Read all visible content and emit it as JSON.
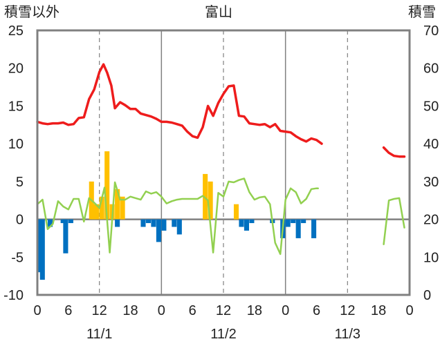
{
  "chart_data": {
    "type": "combo",
    "title": "富山",
    "left_axis_label": "積雪以外",
    "right_axis_label": "積雪",
    "left_axis": {
      "ylim": [
        -10,
        25
      ],
      "ticks": [
        25,
        20,
        15,
        10,
        5,
        0,
        -5,
        -10
      ]
    },
    "right_axis": {
      "ylim": [
        0,
        70
      ],
      "ticks": [
        70,
        60,
        50,
        40,
        30,
        20,
        10,
        0
      ]
    },
    "x_axis": {
      "range_hours": [
        0,
        72
      ],
      "tick_hours": [
        0,
        6,
        12,
        18,
        24,
        30,
        36,
        42,
        48,
        54,
        60,
        66,
        72
      ],
      "tick_labels": [
        "0",
        "6",
        "12",
        "18",
        "0",
        "6",
        "12",
        "18",
        "0",
        "6",
        "12",
        "18",
        "0"
      ],
      "day_labels": [
        {
          "label": "11/1",
          "hour": 12
        },
        {
          "label": "11/2",
          "hour": 36
        },
        {
          "label": "11/3",
          "hour": 60
        }
      ],
      "day_boundaries": [
        24,
        48
      ],
      "dashed_lines": [
        12,
        36,
        60
      ]
    },
    "colors": {
      "red_line": "#ee1c1c",
      "green_line": "#92d050",
      "yellow_bars": "#ffc000",
      "blue_bars": "#0070c0",
      "frame": "#808080",
      "grid": "#808080"
    },
    "red_series_left": [
      [
        0,
        12.9
      ],
      [
        1,
        12.7
      ],
      [
        2,
        12.6
      ],
      [
        3,
        12.7
      ],
      [
        4,
        12.7
      ],
      [
        5,
        12.8
      ],
      [
        6,
        12.5
      ],
      [
        7,
        12.6
      ],
      [
        8,
        13.4
      ],
      [
        9,
        13.5
      ],
      [
        10,
        15.9
      ],
      [
        11,
        17.2
      ],
      [
        12,
        19.5
      ],
      [
        12.8,
        20.5
      ],
      [
        13.5,
        19.4
      ],
      [
        14.3,
        17.7
      ],
      [
        15,
        14.7
      ],
      [
        16,
        15.5
      ],
      [
        17,
        15.1
      ],
      [
        18,
        14.6
      ],
      [
        19,
        14.6
      ],
      [
        20,
        14.0
      ],
      [
        21,
        13.8
      ],
      [
        22,
        13.6
      ],
      [
        23,
        13.3
      ],
      [
        24,
        12.9
      ],
      [
        25,
        12.9
      ],
      [
        26,
        12.8
      ],
      [
        27,
        12.6
      ],
      [
        28,
        12.4
      ],
      [
        29,
        11.6
      ],
      [
        30,
        11.0
      ],
      [
        31,
        10.8
      ],
      [
        32,
        12.2
      ],
      [
        33,
        15.0
      ],
      [
        34,
        13.7
      ],
      [
        35,
        15.4
      ],
      [
        36,
        16.6
      ],
      [
        37,
        17.6
      ],
      [
        38,
        17.7
      ],
      [
        39,
        13.7
      ],
      [
        40,
        13.6
      ],
      [
        41,
        12.7
      ],
      [
        42,
        12.6
      ],
      [
        43,
        12.5
      ],
      [
        44,
        12.6
      ],
      [
        45,
        12.2
      ],
      [
        46,
        12.6
      ],
      [
        47,
        11.7
      ],
      [
        48,
        11.6
      ],
      [
        49,
        11.5
      ],
      [
        50,
        11.0
      ],
      [
        51,
        10.6
      ],
      [
        52,
        10.3
      ],
      [
        53,
        10.7
      ],
      [
        54,
        10.5
      ],
      [
        55,
        10.0
      ],
      null,
      [
        67,
        9.5
      ],
      [
        68,
        8.8
      ],
      [
        69,
        8.4
      ],
      [
        70,
        8.3
      ],
      [
        71,
        8.3
      ]
    ],
    "green_series_left": [
      [
        0,
        2.0
      ],
      [
        1,
        2.6
      ],
      [
        2,
        -1.3
      ],
      [
        3,
        -0.6
      ],
      [
        4,
        2.4
      ],
      [
        5,
        1.7
      ],
      [
        6,
        1.3
      ],
      [
        7,
        2.7
      ],
      [
        8,
        2.7
      ],
      [
        9,
        -0.3
      ],
      [
        10,
        2.8
      ],
      [
        11,
        2.2
      ],
      [
        12,
        1.5
      ],
      [
        13,
        4.2
      ],
      [
        14,
        -4.4
      ],
      [
        15,
        4.9
      ],
      [
        16,
        2.6
      ],
      [
        17,
        2.6
      ],
      [
        18,
        3.0
      ],
      [
        19,
        2.8
      ],
      [
        20,
        2.6
      ],
      [
        21,
        3.7
      ],
      [
        22,
        3.4
      ],
      [
        23,
        3.6
      ],
      [
        24,
        3.0
      ],
      [
        25,
        2.1
      ],
      [
        26,
        2.4
      ],
      [
        27,
        2.6
      ],
      [
        28,
        2.7
      ],
      [
        29,
        2.7
      ],
      [
        30,
        2.7
      ],
      [
        31,
        2.7
      ],
      [
        32,
        3.1
      ],
      [
        33,
        2.5
      ],
      [
        34,
        -4.4
      ],
      [
        35,
        3.5
      ],
      [
        36,
        3.0
      ],
      [
        37,
        5.0
      ],
      [
        38,
        4.9
      ],
      [
        39,
        5.2
      ],
      [
        40,
        5.4
      ],
      [
        41,
        3.6
      ],
      [
        42,
        2.6
      ],
      [
        43,
        2.9
      ],
      [
        44,
        3.0
      ],
      [
        45,
        2.0
      ],
      [
        46,
        -3.1
      ],
      [
        47,
        -4.6
      ],
      [
        48,
        2.6
      ],
      [
        49,
        4.1
      ],
      [
        50,
        3.6
      ],
      [
        51,
        2.1
      ],
      [
        52,
        2.7
      ],
      [
        53,
        4.0
      ],
      [
        54,
        4.1
      ],
      [
        54.3,
        4.1
      ],
      null,
      [
        67,
        -3.3
      ],
      [
        68,
        2.5
      ],
      [
        69,
        2.7
      ],
      [
        70,
        2.8
      ],
      [
        71,
        -1.1
      ]
    ],
    "yellow_bars_left": [
      [
        10,
        5.0
      ],
      [
        10.5,
        2.0
      ],
      [
        11,
        2.0
      ],
      [
        12,
        3.0
      ],
      [
        13,
        9.0
      ],
      [
        14,
        2.0
      ],
      [
        15,
        4.0
      ],
      [
        16,
        3.0
      ],
      [
        32,
        6.0
      ],
      [
        33,
        5.0
      ],
      [
        38,
        2.0
      ]
    ],
    "blue_bars_left": [
      [
        0,
        -7.0
      ],
      [
        0.5,
        -8.0
      ],
      [
        2,
        -1.0
      ],
      [
        4.5,
        -0.5
      ],
      [
        5,
        -4.5
      ],
      [
        6,
        -0.5
      ],
      [
        15,
        -1.0
      ],
      [
        20,
        -1.0
      ],
      [
        21,
        -0.5
      ],
      [
        22,
        -1.0
      ],
      [
        23,
        -3.0
      ],
      [
        24,
        -1.5
      ],
      [
        26,
        -1.0
      ],
      [
        27,
        -2.0
      ],
      [
        39,
        -1.0
      ],
      [
        40,
        -1.5
      ],
      [
        41,
        -0.5
      ],
      [
        45,
        -0.5
      ],
      [
        47,
        -2.5
      ],
      [
        48,
        -1.0
      ],
      [
        49,
        -0.5
      ],
      [
        50,
        -2.5
      ],
      [
        51,
        -0.5
      ],
      [
        53,
        -2.5
      ]
    ]
  }
}
